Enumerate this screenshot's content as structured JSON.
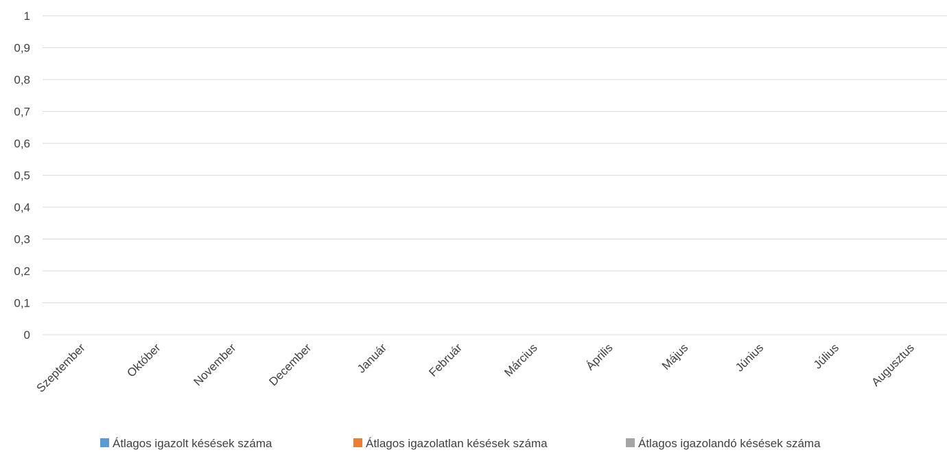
{
  "chart_data": {
    "type": "bar",
    "categories": [
      "Szeptember",
      "Október",
      "November",
      "December",
      "Január",
      "Február",
      "Március",
      "Április",
      "Május",
      "Június",
      "Július",
      "Augusztus"
    ],
    "series": [
      {
        "name": "Átlagos igazolt késések száma",
        "color": "#5b9bd5",
        "values": [
          0,
          0,
          0,
          0,
          0,
          0,
          0,
          0,
          0,
          0,
          0,
          0
        ]
      },
      {
        "name": "Átlagos igazolatlan késések száma",
        "color": "#ed7d31",
        "values": [
          0,
          0,
          0,
          0,
          0,
          0,
          0,
          0,
          0,
          0,
          0,
          0
        ]
      },
      {
        "name": "Átlagos igazolandó késések száma",
        "color": "#a5a5a5",
        "values": [
          0,
          0,
          0,
          0,
          0,
          0,
          0,
          0,
          0,
          0,
          0,
          0
        ]
      }
    ],
    "yticks": [
      "0",
      "0,1",
      "0,2",
      "0,3",
      "0,4",
      "0,5",
      "0,6",
      "0,7",
      "0,8",
      "0,9",
      "1"
    ],
    "ylim": [
      0,
      1
    ],
    "grid": true,
    "legend": "bottom",
    "title": "",
    "xlabel": "",
    "ylabel": ""
  }
}
